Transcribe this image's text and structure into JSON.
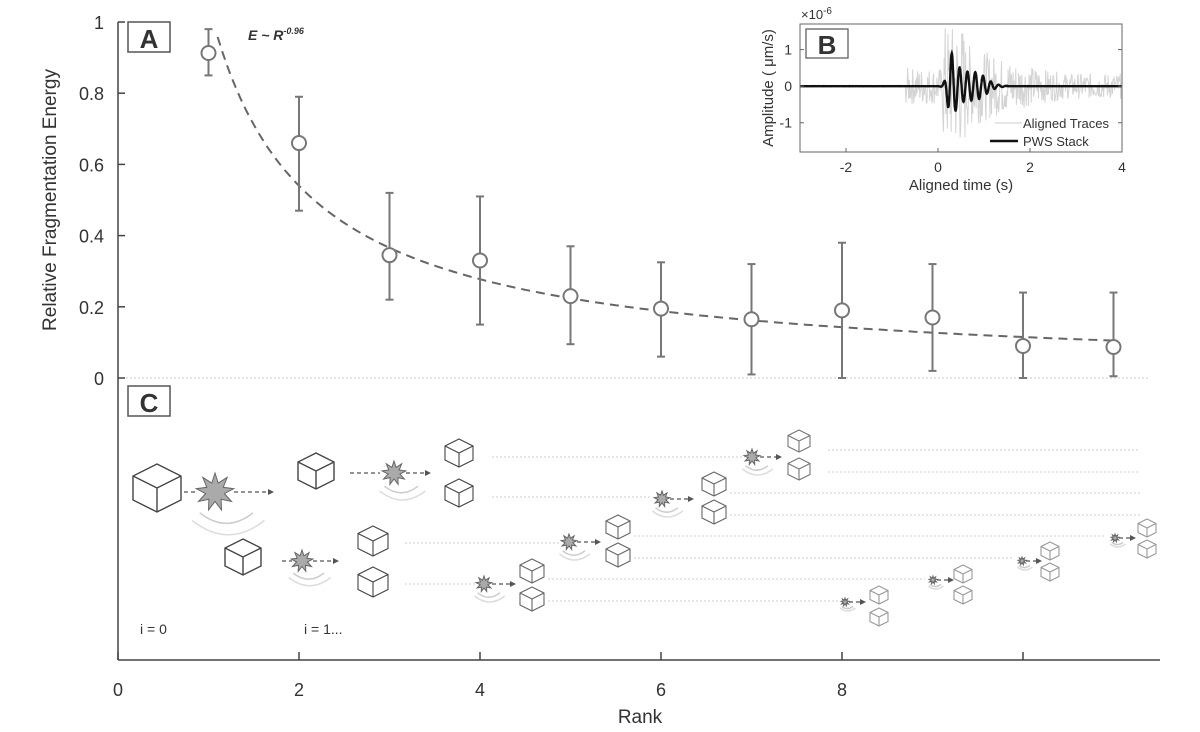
{
  "chart_data": {
    "type": "scatter",
    "xlabel": "Rank",
    "ylabel": "Relative Fragmentation Energy",
    "xlim": [
      0,
      11.5
    ],
    "ylim": [
      0,
      1
    ],
    "xticks": [
      "0",
      "2",
      "4",
      "6",
      "8",
      ""
    ],
    "xtick_values": [
      0,
      2,
      4,
      6,
      8,
      10
    ],
    "yticks": [
      "0",
      "0.2",
      "0.4",
      "0.6",
      "0.8",
      "1"
    ],
    "ytick_values": [
      0,
      0.2,
      0.4,
      0.6,
      0.8,
      1
    ],
    "panel_labels": [
      "A",
      "B",
      "C"
    ],
    "fit": {
      "label_base": "E ~ R",
      "label_exp": "-0.96",
      "exponent": -0.96,
      "coefficient": 1.05
    },
    "series": [
      {
        "name": "Relative fragmentation energy",
        "x": [
          1,
          2,
          3,
          4,
          5,
          6,
          7,
          8,
          9,
          10,
          11
        ],
        "y": [
          0.913,
          0.66,
          0.345,
          0.33,
          0.23,
          0.195,
          0.165,
          0.19,
          0.17,
          0.09,
          0.087
        ],
        "err_high": [
          0.98,
          0.79,
          0.52,
          0.51,
          0.37,
          0.325,
          0.32,
          0.38,
          0.32,
          0.24,
          0.24
        ],
        "err_low": [
          0.85,
          0.47,
          0.22,
          0.15,
          0.095,
          0.06,
          0.01,
          0.0,
          0.02,
          0.0,
          0.005
        ]
      }
    ],
    "inset": {
      "xlabel": "Aligned time (s)",
      "ylabel": "Amplitude ( μm/s)",
      "exponent_label": "×10",
      "exponent_power": "-6",
      "xlim": [
        -3,
        4
      ],
      "ylim": [
        -1.8,
        1.7
      ],
      "xticks": [
        "-2",
        "0",
        "2",
        "4"
      ],
      "xtick_values": [
        -2,
        0,
        2,
        4
      ],
      "yticks": [
        "-1",
        "0",
        "1"
      ],
      "ytick_values": [
        -1,
        0,
        1
      ],
      "legend": [
        "Aligned Traces",
        "PWS Stack"
      ],
      "legend_position": "bottom-right"
    },
    "diagram_labels": [
      "i = 0",
      "i = 1..."
    ]
  }
}
